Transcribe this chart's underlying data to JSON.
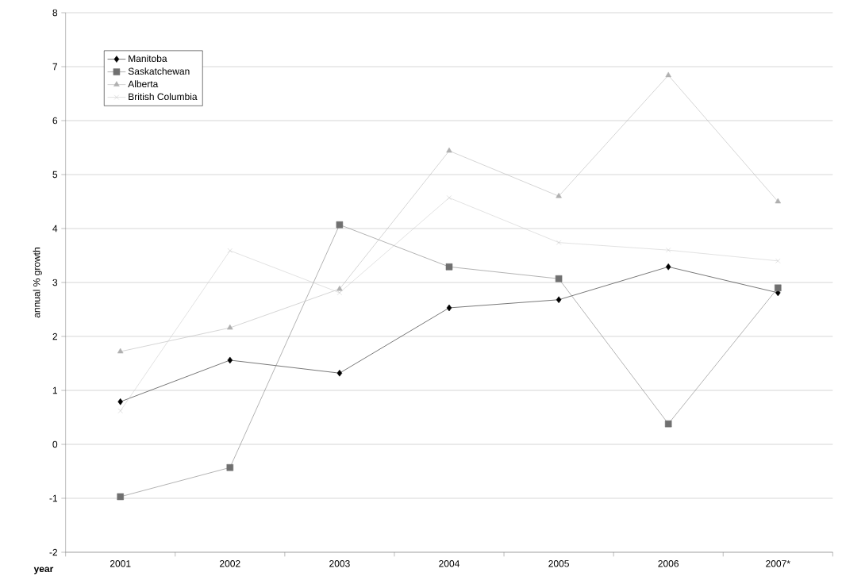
{
  "chart_data": {
    "type": "line",
    "xlabel": "year",
    "ylabel": "annual % growth",
    "categories": [
      "2001",
      "2002",
      "2003",
      "2004",
      "2005",
      "2006",
      "2007*"
    ],
    "series": [
      {
        "name": "Manitoba",
        "color": "#000000",
        "marker": "diamond",
        "values": [
          0.79,
          1.56,
          1.32,
          2.53,
          2.68,
          3.29,
          2.81
        ]
      },
      {
        "name": "Saskatchewan",
        "color": "#707070",
        "marker": "square",
        "values": [
          -0.97,
          -0.43,
          4.07,
          3.29,
          3.07,
          0.38,
          2.9
        ]
      },
      {
        "name": "Alberta",
        "color": "#b0b0b0",
        "marker": "triangle",
        "values": [
          1.72,
          2.16,
          2.88,
          5.44,
          4.6,
          6.84,
          4.5
        ]
      },
      {
        "name": "British Columbia",
        "color": "#c8c8c8",
        "marker": "cross",
        "values": [
          0.62,
          3.59,
          2.81,
          4.57,
          3.74,
          3.6,
          3.4
        ]
      }
    ],
    "ylim": [
      -2,
      8
    ],
    "yticks": [
      -2,
      -1,
      0,
      1,
      2,
      3,
      4,
      5,
      6,
      7,
      8
    ],
    "grid": "y",
    "legend": "top left",
    "line_style": "solid"
  }
}
